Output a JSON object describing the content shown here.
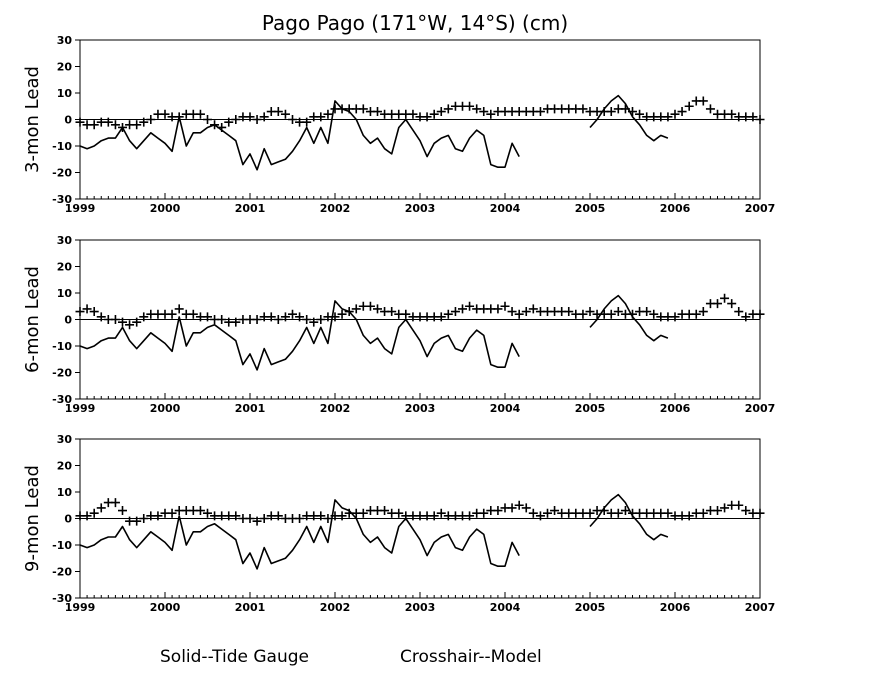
{
  "chart_data": {
    "type": "line",
    "title": "Pago Pago (171°W, 14°S) (cm)",
    "legend": {
      "position": "bottom",
      "solid": "Solid--Tide Gauge",
      "crosshair": "Crosshair--Model"
    },
    "xlim": [
      1999,
      2007
    ],
    "ylim": [
      -30,
      30
    ],
    "x_ticks": [
      "1999",
      "2000",
      "2001",
      "2002",
      "2003",
      "2004",
      "2005",
      "2006",
      "2007"
    ],
    "y_ticks": [
      "30",
      "20",
      "10",
      "0",
      "-10",
      "-20",
      "-30"
    ],
    "grid": false,
    "zero_line": true,
    "tide_gauge": {
      "name": "Tide Gauge",
      "style": "solid",
      "segments": [
        {
          "x": [
            1999.0,
            1999.083,
            1999.167,
            1999.25,
            1999.333,
            1999.417,
            1999.5,
            1999.583,
            1999.667,
            1999.75,
            1999.833,
            1999.917,
            2000.0,
            2000.083,
            2000.167,
            2000.25,
            2000.333,
            2000.417,
            2000.5,
            2000.583,
            2000.667,
            2000.75,
            2000.833,
            2000.917,
            2001.0,
            2001.083,
            2001.167,
            2001.25,
            2001.333,
            2001.417,
            2001.5,
            2001.583,
            2001.667,
            2001.75,
            2001.833,
            2001.917,
            2002.0,
            2002.083,
            2002.167,
            2002.25,
            2002.333,
            2002.417,
            2002.5,
            2002.583,
            2002.667,
            2002.75,
            2002.833,
            2002.917,
            2003.0,
            2003.083,
            2003.167,
            2003.25,
            2003.333,
            2003.417,
            2003.5,
            2003.583,
            2003.667,
            2003.75,
            2003.833,
            2003.917,
            2004.0,
            2004.083,
            2004.167
          ],
          "y": [
            -10,
            -11,
            -10,
            -8,
            -7,
            -7,
            -3,
            -8,
            -11,
            -8,
            -5,
            -7,
            -9,
            -12,
            1,
            -10,
            -5,
            -5,
            -3,
            -2,
            -4,
            -6,
            -8,
            -17,
            -13,
            -19,
            -11,
            -17,
            -16,
            -15,
            -12,
            -8,
            -3,
            -9,
            -3,
            -9,
            7,
            4,
            3,
            0,
            -6,
            -9,
            -7,
            -11,
            -13,
            -3,
            0,
            -4,
            -8,
            -14,
            -9,
            -7,
            -6,
            -11,
            -12,
            -7,
            -4,
            -6,
            -17,
            -18,
            -18,
            -9,
            -14
          ]
        },
        {
          "x": [
            2005.0,
            2005.083,
            2005.167,
            2005.25,
            2005.333,
            2005.417,
            2005.5,
            2005.583,
            2005.667,
            2005.75,
            2005.833,
            2005.917
          ],
          "y": [
            -3,
            0,
            4,
            7,
            9,
            6,
            1,
            -2,
            -6,
            -8,
            -6,
            -7
          ]
        }
      ]
    },
    "panels": [
      {
        "ylabel": "3-mon Lead",
        "model": {
          "name": "Model",
          "style": "crosshair",
          "x": [
            1999.0,
            1999.083,
            1999.167,
            1999.25,
            1999.333,
            1999.417,
            1999.5,
            1999.583,
            1999.667,
            1999.75,
            1999.833,
            1999.917,
            2000.0,
            2000.083,
            2000.167,
            2000.25,
            2000.333,
            2000.417,
            2000.5,
            2000.583,
            2000.667,
            2000.75,
            2000.833,
            2000.917,
            2001.0,
            2001.083,
            2001.167,
            2001.25,
            2001.333,
            2001.417,
            2001.5,
            2001.583,
            2001.667,
            2001.75,
            2001.833,
            2001.917,
            2002.0,
            2002.083,
            2002.167,
            2002.25,
            2002.333,
            2002.417,
            2002.5,
            2002.583,
            2002.667,
            2002.75,
            2002.833,
            2002.917,
            2003.0,
            2003.083,
            2003.167,
            2003.25,
            2003.333,
            2003.417,
            2003.5,
            2003.583,
            2003.667,
            2003.75,
            2003.833,
            2003.917,
            2004.0,
            2004.083,
            2004.167,
            2004.25,
            2004.333,
            2004.417,
            2004.5,
            2004.583,
            2004.667,
            2004.75,
            2004.833,
            2004.917,
            2005.0,
            2005.083,
            2005.167,
            2005.25,
            2005.333,
            2005.417,
            2005.5,
            2005.583,
            2005.667,
            2005.75,
            2005.833,
            2005.917,
            2006.0,
            2006.083,
            2006.167,
            2006.25,
            2006.333,
            2006.417,
            2006.5,
            2006.583,
            2006.667,
            2006.75,
            2006.833,
            2006.917,
            2007.0
          ],
          "y": [
            -1,
            -2,
            -2,
            -1,
            -1,
            -2,
            -3,
            -2,
            -2,
            -1,
            0,
            2,
            2,
            1,
            1,
            2,
            2,
            2,
            0,
            -2,
            -3,
            -1,
            0,
            1,
            1,
            0,
            1,
            3,
            3,
            2,
            0,
            -1,
            -1,
            1,
            1,
            2,
            4,
            4,
            4,
            4,
            4,
            3,
            3,
            2,
            2,
            2,
            2,
            2,
            1,
            1,
            2,
            3,
            4,
            5,
            5,
            5,
            4,
            3,
            2,
            3,
            3,
            3,
            3,
            3,
            3,
            3,
            4,
            4,
            4,
            4,
            4,
            4,
            3,
            3,
            3,
            3,
            4,
            4,
            3,
            2,
            1,
            1,
            1,
            1,
            2,
            3,
            5,
            7,
            7,
            4,
            2,
            2,
            2,
            1,
            1,
            1,
            0
          ]
        }
      },
      {
        "ylabel": "6-mon Lead",
        "model": {
          "name": "Model",
          "style": "crosshair",
          "x": [
            1999.0,
            1999.083,
            1999.167,
            1999.25,
            1999.333,
            1999.417,
            1999.5,
            1999.583,
            1999.667,
            1999.75,
            1999.833,
            1999.917,
            2000.0,
            2000.083,
            2000.167,
            2000.25,
            2000.333,
            2000.417,
            2000.5,
            2000.583,
            2000.667,
            2000.75,
            2000.833,
            2000.917,
            2001.0,
            2001.083,
            2001.167,
            2001.25,
            2001.333,
            2001.417,
            2001.5,
            2001.583,
            2001.667,
            2001.75,
            2001.833,
            2001.917,
            2002.0,
            2002.083,
            2002.167,
            2002.25,
            2002.333,
            2002.417,
            2002.5,
            2002.583,
            2002.667,
            2002.75,
            2002.833,
            2002.917,
            2003.0,
            2003.083,
            2003.167,
            2003.25,
            2003.333,
            2003.417,
            2003.5,
            2003.583,
            2003.667,
            2003.75,
            2003.833,
            2003.917,
            2004.0,
            2004.083,
            2004.167,
            2004.25,
            2004.333,
            2004.417,
            2004.5,
            2004.583,
            2004.667,
            2004.75,
            2004.833,
            2004.917,
            2005.0,
            2005.083,
            2005.167,
            2005.25,
            2005.333,
            2005.417,
            2005.5,
            2005.583,
            2005.667,
            2005.75,
            2005.833,
            2005.917,
            2006.0,
            2006.083,
            2006.167,
            2006.25,
            2006.333,
            2006.417,
            2006.5,
            2006.583,
            2006.667,
            2006.75,
            2006.833,
            2006.917,
            2007.0
          ],
          "y": [
            3,
            4,
            3,
            1,
            0,
            0,
            -1,
            -2,
            -1,
            1,
            2,
            2,
            2,
            2,
            4,
            2,
            2,
            1,
            1,
            0,
            0,
            -1,
            -1,
            0,
            0,
            0,
            1,
            1,
            0,
            1,
            2,
            1,
            0,
            -1,
            0,
            1,
            1,
            2,
            3,
            4,
            5,
            5,
            4,
            3,
            3,
            2,
            2,
            1,
            1,
            1,
            1,
            1,
            2,
            3,
            4,
            5,
            4,
            4,
            4,
            4,
            5,
            3,
            2,
            3,
            4,
            3,
            3,
            3,
            3,
            3,
            2,
            2,
            3,
            2,
            2,
            2,
            3,
            2,
            2,
            3,
            3,
            2,
            1,
            1,
            1,
            2,
            2,
            2,
            3,
            6,
            6,
            8,
            6,
            3,
            1,
            2,
            2
          ]
        }
      },
      {
        "ylabel": "9-mon Lead",
        "model": {
          "name": "Model",
          "style": "crosshair",
          "x": [
            1999.0,
            1999.083,
            1999.167,
            1999.25,
            1999.333,
            1999.417,
            1999.5,
            1999.583,
            1999.667,
            1999.75,
            1999.833,
            1999.917,
            2000.0,
            2000.083,
            2000.167,
            2000.25,
            2000.333,
            2000.417,
            2000.5,
            2000.583,
            2000.667,
            2000.75,
            2000.833,
            2000.917,
            2001.0,
            2001.083,
            2001.167,
            2001.25,
            2001.333,
            2001.417,
            2001.5,
            2001.583,
            2001.667,
            2001.75,
            2001.833,
            2001.917,
            2002.0,
            2002.083,
            2002.167,
            2002.25,
            2002.333,
            2002.417,
            2002.5,
            2002.583,
            2002.667,
            2002.75,
            2002.833,
            2002.917,
            2003.0,
            2003.083,
            2003.167,
            2003.25,
            2003.333,
            2003.417,
            2003.5,
            2003.583,
            2003.667,
            2003.75,
            2003.833,
            2003.917,
            2004.0,
            2004.083,
            2004.167,
            2004.25,
            2004.333,
            2004.417,
            2004.5,
            2004.583,
            2004.667,
            2004.75,
            2004.833,
            2004.917,
            2005.0,
            2005.083,
            2005.167,
            2005.25,
            2005.333,
            2005.417,
            2005.5,
            2005.583,
            2005.667,
            2005.75,
            2005.833,
            2005.917,
            2006.0,
            2006.083,
            2006.167,
            2006.25,
            2006.333,
            2006.417,
            2006.5,
            2006.583,
            2006.667,
            2006.75,
            2006.833,
            2006.917,
            2007.0
          ],
          "y": [
            1,
            1,
            2,
            4,
            6,
            6,
            3,
            -1,
            -1,
            0,
            1,
            1,
            2,
            2,
            3,
            3,
            3,
            3,
            2,
            1,
            1,
            1,
            1,
            0,
            0,
            -1,
            0,
            1,
            1,
            0,
            0,
            0,
            1,
            1,
            1,
            0,
            1,
            1,
            2,
            2,
            2,
            3,
            3,
            3,
            2,
            2,
            1,
            1,
            1,
            1,
            1,
            2,
            1,
            1,
            1,
            1,
            2,
            2,
            3,
            3,
            4,
            4,
            5,
            4,
            2,
            1,
            2,
            3,
            2,
            2,
            2,
            2,
            2,
            3,
            3,
            2,
            2,
            3,
            2,
            2,
            2,
            2,
            2,
            2,
            1,
            1,
            1,
            2,
            2,
            3,
            3,
            4,
            5,
            5,
            3,
            2,
            2
          ]
        }
      }
    ]
  }
}
